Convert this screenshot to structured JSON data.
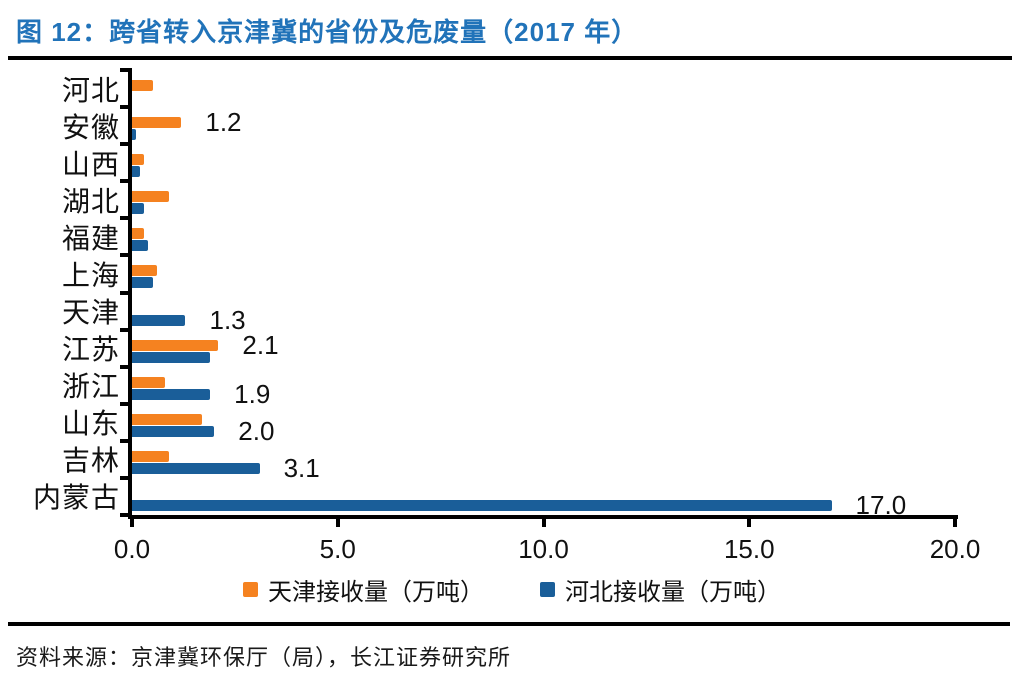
{
  "title": "图 12：跨省转入京津冀的省份及危废量（2017 年）",
  "source": "资料来源：京津冀环保厅（局），长江证券研究所",
  "colors": {
    "tianjin_series": "#F58220",
    "hebei_series": "#1A5E99",
    "title_text": "#2173B9",
    "axis": "#000000"
  },
  "chart_data": {
    "type": "bar",
    "orientation": "horizontal",
    "title": "图 12：跨省转入京津冀的省份及危废量（2017 年）",
    "categories": [
      "河北",
      "安徽",
      "山西",
      "湖北",
      "福建",
      "上海",
      "天津",
      "江苏",
      "浙江",
      "山东",
      "吉林",
      "内蒙古"
    ],
    "series": [
      {
        "name": "天津接收量（万吨）",
        "color_key": "tianjin_series",
        "values": [
          0.5,
          1.2,
          0.3,
          0.9,
          0.3,
          0.6,
          0,
          2.1,
          0.8,
          1.7,
          0.9,
          0
        ]
      },
      {
        "name": "河北接收量（万吨）",
        "color_key": "hebei_series",
        "values": [
          0,
          0.1,
          0.2,
          0.3,
          0.4,
          0.5,
          1.3,
          1.9,
          1.9,
          2.0,
          3.1,
          17.0
        ]
      }
    ],
    "data_labels": [
      {
        "category": "安徽",
        "series": 0,
        "text": "1.2"
      },
      {
        "category": "天津",
        "series": 1,
        "text": "1.3"
      },
      {
        "category": "江苏",
        "series": 0,
        "text": "2.1"
      },
      {
        "category": "浙江",
        "series": 1,
        "text": "1.9"
      },
      {
        "category": "山东",
        "series": 1,
        "text": "2.0"
      },
      {
        "category": "吉林",
        "series": 1,
        "text": "3.1"
      },
      {
        "category": "内蒙古",
        "series": 1,
        "text": "17.0"
      }
    ],
    "xlim": [
      0,
      20
    ],
    "xticks": [
      "0.0",
      "5.0",
      "10.0",
      "15.0",
      "20.0"
    ],
    "grid": false,
    "legend_position": "bottom"
  }
}
